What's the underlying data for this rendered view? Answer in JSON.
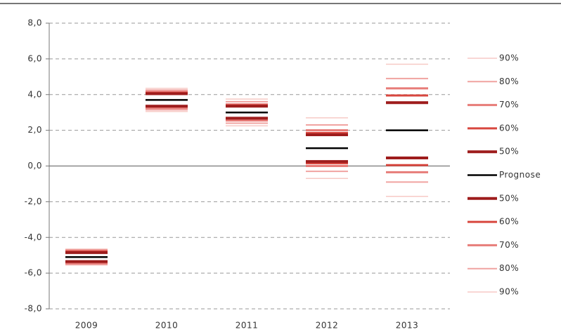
{
  "chart_data": {
    "type": "fan",
    "categories": [
      "2009",
      "2010",
      "2011",
      "2012",
      "2013"
    ],
    "ylim": [
      -8,
      8
    ],
    "yticks": [
      {
        "value": -8,
        "label": "-8,0"
      },
      {
        "value": -6,
        "label": "-6,0"
      },
      {
        "value": -4,
        "label": "-4,0"
      },
      {
        "value": -2,
        "label": "-2,0"
      },
      {
        "value": 0,
        "label": "0,0"
      },
      {
        "value": 2,
        "label": "2,0"
      },
      {
        "value": 4,
        "label": "4,0"
      },
      {
        "value": 6,
        "label": "6,0"
      },
      {
        "value": 8,
        "label": "8,0"
      }
    ],
    "grid": true,
    "legend": "right",
    "series": [
      {
        "name": "90%",
        "color": "#f7c9c5",
        "values": [
          -4.65,
          4.35,
          3.75,
          2.7,
          5.7
        ]
      },
      {
        "name": "80%",
        "color": "#f0a3a0",
        "values": [
          -4.7,
          4.25,
          3.6,
          2.3,
          4.9
        ]
      },
      {
        "name": "70%",
        "color": "#e77c78",
        "values": [
          -4.75,
          4.15,
          3.45,
          2.0,
          4.35
        ]
      },
      {
        "name": "60%",
        "color": "#d8473f",
        "values": [
          -4.8,
          4.1,
          3.4,
          1.85,
          3.95
        ]
      },
      {
        "name": "50%",
        "color": "#9e1c1c",
        "values": [
          -4.85,
          4.05,
          3.35,
          1.75,
          3.55
        ]
      },
      {
        "name": "Prognose",
        "color": "#000000",
        "values": [
          -5.1,
          3.7,
          3.0,
          1.0,
          2.0
        ]
      },
      {
        "name": "50%",
        "color": "#9e1c1c",
        "values": [
          -5.35,
          3.35,
          2.68,
          0.25,
          0.45
        ]
      },
      {
        "name": "60%",
        "color": "#d8473f",
        "values": [
          -5.4,
          3.3,
          2.6,
          0.15,
          0.05
        ]
      },
      {
        "name": "70%",
        "color": "#e77c78",
        "values": [
          -5.45,
          3.25,
          2.55,
          0.0,
          -0.35
        ]
      },
      {
        "name": "80%",
        "color": "#f0a3a0",
        "values": [
          -5.5,
          3.15,
          2.4,
          -0.3,
          -0.9
        ]
      },
      {
        "name": "90%",
        "color": "#f7c9c5",
        "values": [
          -5.55,
          3.05,
          2.25,
          -0.7,
          -1.7
        ]
      }
    ]
  }
}
